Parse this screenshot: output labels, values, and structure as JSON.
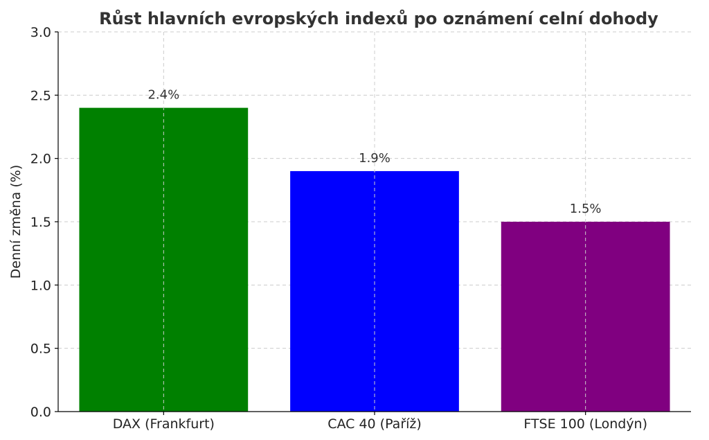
{
  "chart_data": {
    "type": "bar",
    "title": "Růst hlavních evropských indexů po oznámení celní dohody",
    "xlabel": "",
    "ylabel": "Denní změna (%)",
    "categories": [
      "DAX (Frankfurt)",
      "CAC 40 (Paříž)",
      "FTSE 100 (Londýn)"
    ],
    "values": [
      2.4,
      1.9,
      1.5
    ],
    "data_labels": [
      "2.4%",
      "1.9%",
      "1.5%"
    ],
    "colors": [
      "#008000",
      "#0000ff",
      "#800080"
    ],
    "ylim": [
      0,
      3.0
    ],
    "yticks": [
      0.0,
      0.5,
      1.0,
      1.5,
      2.0,
      2.5,
      3.0
    ],
    "ytick_labels": [
      "0.0",
      "0.5",
      "1.0",
      "1.5",
      "2.0",
      "2.5",
      "3.0"
    ],
    "grid": true,
    "legend": "none"
  }
}
